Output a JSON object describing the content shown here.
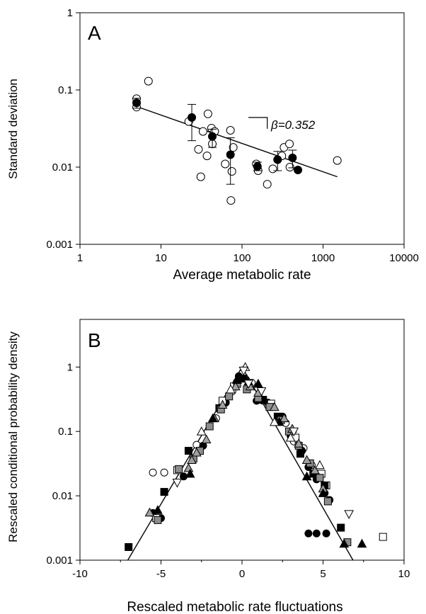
{
  "chart_data": [
    {
      "panel_label": "A",
      "type": "scatter",
      "xscale": "log",
      "yscale": "log",
      "xlabel": "Average metabolic rate",
      "ylabel": "Standard deviation",
      "xlim": [
        1,
        10000
      ],
      "ylim": [
        0.001,
        1
      ],
      "x_ticks": [
        1,
        10,
        100,
        1000,
        10000
      ],
      "x_tick_labels": [
        "1",
        "10",
        "100",
        "1000",
        "10000"
      ],
      "y_ticks": [
        0.001,
        0.01,
        0.1,
        1
      ],
      "y_tick_labels": [
        "0.001",
        "0.01",
        "0.1",
        "1"
      ],
      "annotation": "β=0.352",
      "fit_line": {
        "x": [
          5,
          1500
        ],
        "y": [
          0.061,
          0.0075
        ]
      },
      "slope_bracket": {
        "x": [
          120,
          205
        ],
        "y": 0.044
      },
      "series": [
        {
          "marker": "open-circle",
          "points": [
            [
              5,
              0.077
            ],
            [
              5,
              0.06
            ],
            [
              7,
              0.13
            ],
            [
              22,
              0.039
            ],
            [
              29,
              0.017
            ],
            [
              31,
              0.0075
            ],
            [
              33,
              0.029
            ],
            [
              37,
              0.014
            ],
            [
              38,
              0.049
            ],
            [
              42,
              0.032
            ],
            [
              43,
              0.02
            ],
            [
              46,
              0.029
            ],
            [
              62,
              0.011
            ],
            [
              72,
              0.03
            ],
            [
              73,
              0.0037
            ],
            [
              75,
              0.0088
            ],
            [
              78,
              0.018
            ],
            [
              150,
              0.011
            ],
            [
              158,
              0.009
            ],
            [
              205,
              0.006
            ],
            [
              240,
              0.0095
            ],
            [
              275,
              0.0125
            ],
            [
              310,
              0.014
            ],
            [
              330,
              0.018
            ],
            [
              385,
              0.02
            ],
            [
              390,
              0.01
            ],
            [
              1500,
              0.0122
            ]
          ]
        },
        {
          "marker": "filled-circle",
          "points": [
            {
              "x": 5,
              "y": 0.068,
              "lo": 0.058,
              "hi": 0.078
            },
            {
              "x": 24,
              "y": 0.044,
              "lo": 0.022,
              "hi": 0.065
            },
            {
              "x": 43,
              "y": 0.025,
              "lo": 0.018,
              "hi": 0.031
            },
            {
              "x": 72,
              "y": 0.0145,
              "lo": 0.006,
              "hi": 0.024
            },
            {
              "x": 155,
              "y": 0.0102,
              "lo": 0.009,
              "hi": 0.0116
            },
            {
              "x": 275,
              "y": 0.0125,
              "lo": 0.009,
              "hi": 0.016
            },
            {
              "x": 420,
              "y": 0.0132,
              "lo": 0.0098,
              "hi": 0.0166
            },
            {
              "x": 490,
              "y": 0.0092
            }
          ]
        }
      ]
    },
    {
      "panel_label": "B",
      "type": "scatter",
      "xscale": "linear",
      "yscale": "log",
      "xlabel": "Rescaled metabolic rate fluctuations",
      "ylabel": "Rescaled conditional probability density",
      "xlim": [
        -10,
        10
      ],
      "ylim": [
        0.001,
        5.5
      ],
      "x_ticks": [
        -10,
        -5,
        0,
        5,
        10
      ],
      "x_tick_labels": [
        "-10",
        "-5",
        "0",
        "5",
        "10"
      ],
      "y_ticks": [
        0.001,
        0.01,
        0.1,
        1
      ],
      "y_tick_labels": [
        "0.001",
        "0.01",
        "0.1",
        "1"
      ],
      "fit_line": {
        "x": [
          -7.05,
          0,
          6.85
        ],
        "y": [
          0.001,
          1,
          0.001
        ]
      },
      "series": [
        {
          "marker": "open-circle",
          "points": [
            [
              -5.5,
              0.023
            ],
            [
              -4.8,
              0.023
            ],
            [
              -2.8,
              0.062
            ],
            [
              -1.6,
              0.16
            ],
            [
              -0.6,
              0.42
            ],
            [
              0.6,
              0.57
            ],
            [
              1.3,
              0.3
            ],
            [
              2.7,
              0.135
            ],
            [
              3.2,
              0.07
            ],
            [
              3.8,
              0.055
            ],
            [
              4.3,
              0.03
            ],
            [
              4.5,
              0.022
            ]
          ]
        },
        {
          "marker": "filled-circle",
          "points": [
            [
              -5.5,
              0.0054
            ],
            [
              -5.0,
              0.0045
            ],
            [
              -3.6,
              0.02
            ],
            [
              -2.4,
              0.06
            ],
            [
              -1.0,
              0.28
            ],
            [
              -0.2,
              0.72
            ],
            [
              0.9,
              0.3
            ],
            [
              1.6,
              0.28
            ],
            [
              2.5,
              0.17
            ],
            [
              3.0,
              0.085
            ],
            [
              3.7,
              0.05
            ],
            [
              4.1,
              0.028
            ],
            [
              4.6,
              0.018
            ],
            [
              5.1,
              0.011
            ],
            [
              5.4,
              0.0086
            ],
            [
              4.1,
              0.0026
            ],
            [
              4.6,
              0.0026
            ],
            [
              5.2,
              0.0026
            ]
          ]
        },
        {
          "marker": "open-square",
          "points": [
            [
              -5.3,
              0.0045
            ],
            [
              -4.0,
              0.025
            ],
            [
              -1.2,
              0.3
            ],
            [
              -0.5,
              0.5
            ],
            [
              1.8,
              0.27
            ],
            [
              3.3,
              0.08
            ],
            [
              4.9,
              0.022
            ],
            [
              5.2,
              0.0145
            ],
            [
              8.7,
              0.0023
            ]
          ]
        },
        {
          "marker": "filled-square",
          "points": [
            [
              -7.0,
              0.0016
            ],
            [
              -4.8,
              0.0115
            ],
            [
              -3.3,
              0.05
            ],
            [
              -1.4,
              0.23
            ],
            [
              0.1,
              0.66
            ],
            [
              1.3,
              0.31
            ],
            [
              2.2,
              0.17
            ],
            [
              3.6,
              0.045
            ],
            [
              4.4,
              0.022
            ],
            [
              5.1,
              0.0145
            ],
            [
              6.1,
              0.0032
            ]
          ]
        },
        {
          "marker": "grey-square",
          "points": [
            [
              -5.2,
              0.0042
            ],
            [
              -3.9,
              0.026
            ],
            [
              -3.0,
              0.038
            ],
            [
              -2.6,
              0.05
            ],
            [
              -2.0,
              0.12
            ],
            [
              -1.3,
              0.22
            ],
            [
              -0.8,
              0.35
            ],
            [
              -0.3,
              0.55
            ],
            [
              0.3,
              0.45
            ],
            [
              1.0,
              0.33
            ],
            [
              1.7,
              0.24
            ],
            [
              2.4,
              0.15
            ],
            [
              2.9,
              0.1
            ],
            [
              3.5,
              0.06
            ],
            [
              4.2,
              0.032
            ],
            [
              4.8,
              0.019
            ],
            [
              5.3,
              0.0082
            ],
            [
              6.5,
              0.0019
            ]
          ]
        },
        {
          "marker": "grey-triangle",
          "points": [
            [
              -5.7,
              0.0055
            ],
            [
              -3.3,
              0.027
            ],
            [
              -3.1,
              0.036
            ],
            [
              -2.8,
              0.047
            ],
            [
              -2.2,
              0.075
            ],
            [
              -1.7,
              0.16
            ],
            [
              -1.2,
              0.26
            ],
            [
              -0.4,
              0.5
            ],
            [
              0.5,
              0.5
            ],
            [
              1.0,
              0.4
            ],
            [
              2.0,
              0.24
            ],
            [
              2.6,
              0.16
            ],
            [
              3.1,
              0.11
            ],
            [
              3.5,
              0.065
            ],
            [
              4.0,
              0.036
            ],
            [
              4.5,
              0.025
            ],
            [
              5.0,
              0.013
            ]
          ]
        },
        {
          "marker": "filled-triangle",
          "points": [
            [
              -5.2,
              0.006
            ],
            [
              -3.2,
              0.022
            ],
            [
              -1.8,
              0.16
            ],
            [
              -0.3,
              0.63
            ],
            [
              0.4,
              0.6
            ],
            [
              1.0,
              0.55
            ],
            [
              2.3,
              0.14
            ],
            [
              4.0,
              0.02
            ],
            [
              5.0,
              0.011
            ],
            [
              6.3,
              0.0018
            ],
            [
              7.4,
              0.0018
            ]
          ]
        },
        {
          "marker": "open-triangle-up",
          "points": [
            [
              -2.5,
              0.1
            ],
            [
              -0.7,
              0.45
            ],
            [
              0.2,
              1.0
            ],
            [
              2.0,
              0.14
            ],
            [
              3.0,
              0.08
            ],
            [
              4.8,
              0.03
            ]
          ]
        },
        {
          "marker": "open-triangle-down",
          "points": [
            [
              -4.0,
              0.016
            ],
            [
              0.1,
              0.88
            ],
            [
              0.4,
              0.55
            ],
            [
              1.2,
              0.42
            ],
            [
              3.2,
              0.1
            ],
            [
              6.6,
              0.0052
            ]
          ]
        }
      ]
    }
  ]
}
